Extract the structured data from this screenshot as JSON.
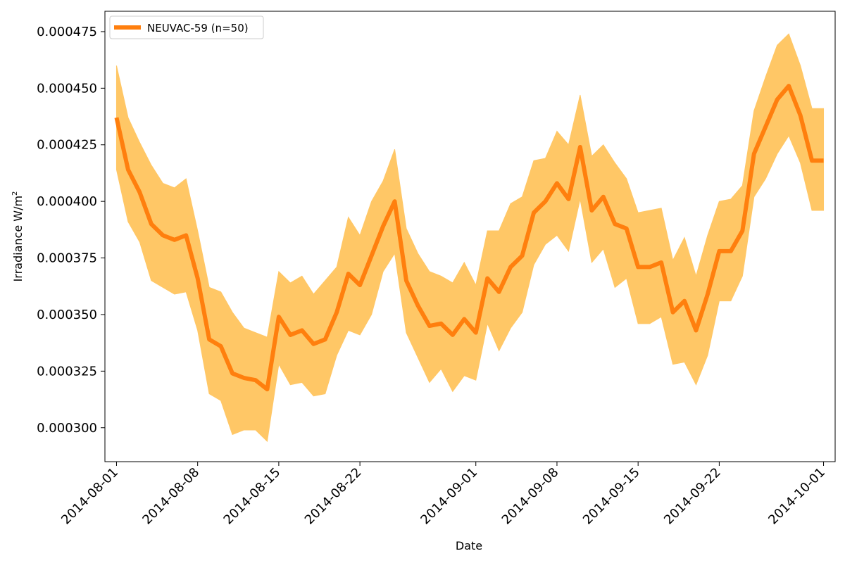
{
  "chart_data": {
    "type": "line",
    "title": "",
    "xlabel": "Date",
    "ylabel": "Irradiance W/m",
    "ylabel_sup": "2",
    "grid": false,
    "legend_position": "top-left",
    "colors": {
      "line": "#ff7f0e",
      "band": "#ffc766"
    },
    "x_range": [
      "2014-07-31",
      "2014-10-02"
    ],
    "y_range": [
      0.000285,
      0.000484
    ],
    "x_ticks": [
      "2014-08-01",
      "2014-08-08",
      "2014-08-15",
      "2014-08-22",
      "2014-09-01",
      "2014-09-08",
      "2014-09-15",
      "2014-09-22",
      "2014-10-01"
    ],
    "y_ticks": [
      "0.000300",
      "0.000325",
      "0.000350",
      "0.000375",
      "0.000400",
      "0.000425",
      "0.000450",
      "0.000475"
    ],
    "series": [
      {
        "name": "NEUVAC-59 (n=50)",
        "x": [
          "2014-08-01",
          "2014-08-02",
          "2014-08-03",
          "2014-08-04",
          "2014-08-05",
          "2014-08-06",
          "2014-08-07",
          "2014-08-08",
          "2014-08-09",
          "2014-08-10",
          "2014-08-11",
          "2014-08-12",
          "2014-08-13",
          "2014-08-14",
          "2014-08-15",
          "2014-08-16",
          "2014-08-17",
          "2014-08-18",
          "2014-08-19",
          "2014-08-20",
          "2014-08-21",
          "2014-08-22",
          "2014-08-23",
          "2014-08-24",
          "2014-08-25",
          "2014-08-26",
          "2014-08-27",
          "2014-08-28",
          "2014-08-29",
          "2014-08-30",
          "2014-08-31",
          "2014-09-01",
          "2014-09-02",
          "2014-09-03",
          "2014-09-04",
          "2014-09-05",
          "2014-09-06",
          "2014-09-07",
          "2014-09-08",
          "2014-09-09",
          "2014-09-10",
          "2014-09-11",
          "2014-09-12",
          "2014-09-13",
          "2014-09-14",
          "2014-09-15",
          "2014-09-16",
          "2014-09-17",
          "2014-09-18",
          "2014-09-19",
          "2014-09-20",
          "2014-09-21",
          "2014-09-22",
          "2014-09-23",
          "2014-09-24",
          "2014-09-25",
          "2014-09-26",
          "2014-09-27",
          "2014-09-28",
          "2014-09-29",
          "2014-09-30",
          "2014-10-01"
        ],
        "values": [
          0.000437,
          0.000414,
          0.000404,
          0.00039,
          0.000385,
          0.000383,
          0.000385,
          0.000366,
          0.000339,
          0.000336,
          0.000324,
          0.000322,
          0.000321,
          0.000317,
          0.000349,
          0.000341,
          0.000343,
          0.000337,
          0.000339,
          0.000351,
          0.000368,
          0.000363,
          0.000376,
          0.000389,
          0.0004,
          0.000365,
          0.000354,
          0.000345,
          0.000346,
          0.000341,
          0.000348,
          0.000342,
          0.000366,
          0.00036,
          0.000371,
          0.000376,
          0.000395,
          0.0004,
          0.000408,
          0.000401,
          0.000424,
          0.000396,
          0.000402,
          0.00039,
          0.000388,
          0.000371,
          0.000371,
          0.000373,
          0.000351,
          0.000356,
          0.000343,
          0.000359,
          0.000378,
          0.000378,
          0.000387,
          0.000421,
          0.000433,
          0.000445,
          0.000451,
          0.000438,
          0.000418,
          0.000418
        ],
        "upper": [
          0.00046,
          0.000437,
          0.000426,
          0.000416,
          0.000408,
          0.000406,
          0.00041,
          0.000387,
          0.000362,
          0.00036,
          0.000351,
          0.000344,
          0.000342,
          0.00034,
          0.000369,
          0.000364,
          0.000367,
          0.000359,
          0.000365,
          0.000371,
          0.000393,
          0.000385,
          0.0004,
          0.000409,
          0.000423,
          0.000388,
          0.000377,
          0.000369,
          0.000367,
          0.000364,
          0.000373,
          0.000363,
          0.000387,
          0.000387,
          0.000399,
          0.000402,
          0.000418,
          0.000419,
          0.000431,
          0.000425,
          0.000447,
          0.00042,
          0.000425,
          0.000417,
          0.00041,
          0.000395,
          0.000396,
          0.000397,
          0.000374,
          0.000384,
          0.000367,
          0.000385,
          0.0004,
          0.000401,
          0.000407,
          0.00044,
          0.000455,
          0.000469,
          0.000474,
          0.00046,
          0.000441,
          0.000441
        ],
        "lower": [
          0.000414,
          0.000391,
          0.000382,
          0.000365,
          0.000362,
          0.000359,
          0.00036,
          0.000343,
          0.000315,
          0.000312,
          0.000297,
          0.000299,
          0.000299,
          0.000294,
          0.000328,
          0.000319,
          0.00032,
          0.000314,
          0.000315,
          0.000332,
          0.000343,
          0.000341,
          0.00035,
          0.000369,
          0.000377,
          0.000342,
          0.000331,
          0.00032,
          0.000326,
          0.000316,
          0.000323,
          0.000321,
          0.000346,
          0.000334,
          0.000344,
          0.000351,
          0.000372,
          0.000381,
          0.000385,
          0.000378,
          0.000401,
          0.000373,
          0.000379,
          0.000362,
          0.000366,
          0.000346,
          0.000346,
          0.000349,
          0.000328,
          0.000329,
          0.000319,
          0.000332,
          0.000356,
          0.000356,
          0.000367,
          0.000402,
          0.00041,
          0.000421,
          0.000429,
          0.000417,
          0.000396,
          0.000396
        ]
      }
    ]
  }
}
